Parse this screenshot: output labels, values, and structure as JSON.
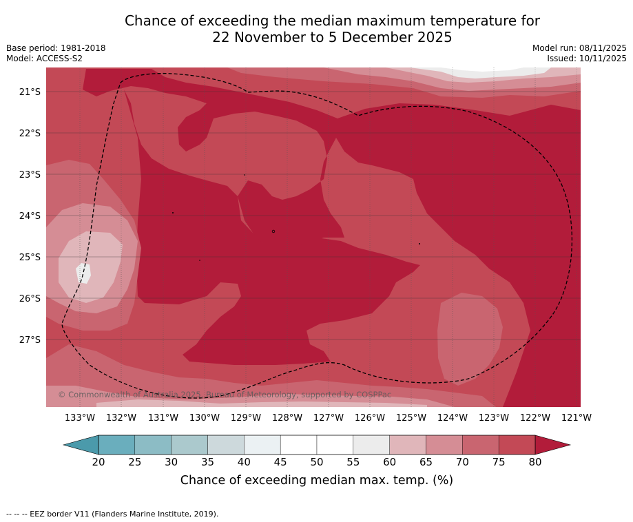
{
  "title": {
    "line1": "Chance of exceeding the median maximum temperature for",
    "line2": "22 November to 5 December 2025"
  },
  "meta": {
    "base_period": "Base period: 1981-2018",
    "model": "Model: ACCESS-S2",
    "model_run": "Model run: 08/11/2025",
    "issued": "Issued: 10/11/2025"
  },
  "map": {
    "lat_labels": [
      "21°S",
      "22°S",
      "23°S",
      "24°S",
      "25°S",
      "26°S",
      "27°S"
    ],
    "lon_labels": [
      "133°W",
      "132°W",
      "131°W",
      "130°W",
      "129°W",
      "128°W",
      "127°W",
      "126°W",
      "125°W",
      "124°W",
      "123°W",
      "122°W",
      "121°W"
    ],
    "copyright": "© Commonwealth of Australia 2025, Bureau of Meteorology, supported by COSPPac",
    "colors": {
      "c80": "#b21c3a",
      "c75": "#c34956",
      "c70": "#c96570",
      "c65": "#d58d95",
      "c60": "#e0b6ba",
      "c55": "#ececec",
      "c50": "#ffffff"
    }
  },
  "colorbar": {
    "ticks": [
      "20",
      "25",
      "30",
      "35",
      "40",
      "45",
      "50",
      "55",
      "60",
      "65",
      "70",
      "75",
      "80"
    ],
    "colors": [
      "#6aaebd",
      "#8cbcc5",
      "#abc9cd",
      "#cdd9dc",
      "#ebf1f3",
      "#ffffff",
      "#ffffff",
      "#ececec",
      "#e0b6ba",
      "#d58d95",
      "#c96570",
      "#c34956"
    ],
    "low_color": "#4b9aab",
    "high_color": "#b21c3a",
    "label": "Chance of exceeding median max. temp. (%)"
  },
  "footnote": "--  --  -- EEZ border V11 (Flanders Marine Institute, 2019)."
}
